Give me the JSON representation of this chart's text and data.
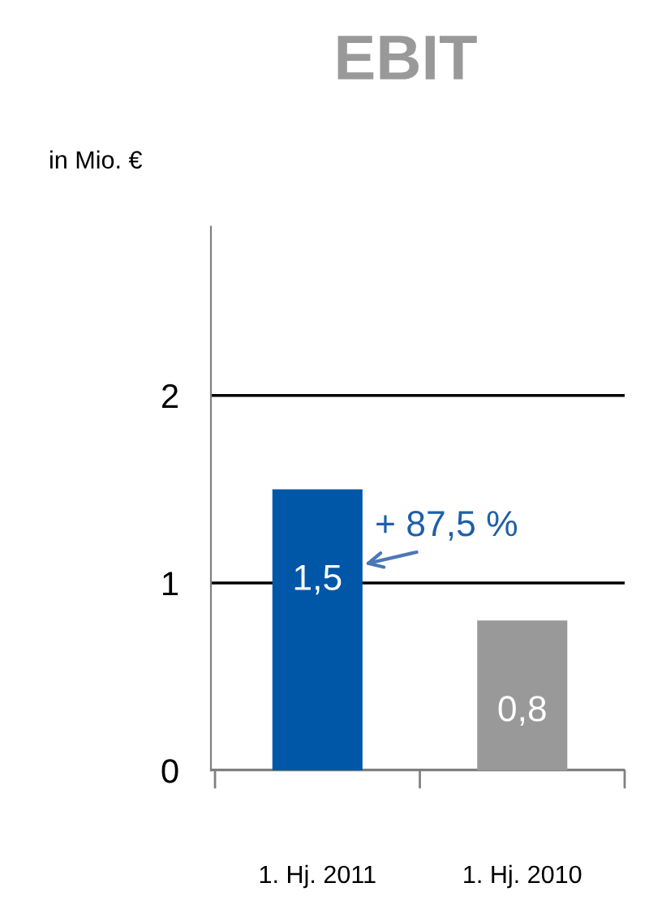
{
  "chart_data": {
    "type": "bar",
    "title": "EBIT",
    "ylabel": "in Mio. €",
    "categories": [
      "1. Hj. 2011",
      "1. Hj. 2010"
    ],
    "values": [
      1.5,
      0.8
    ],
    "colors": [
      "#0057a8",
      "#999999"
    ],
    "value_labels": [
      "1,5",
      "0,8"
    ],
    "ylim": [
      0,
      2.9
    ],
    "yticks": [
      0,
      1,
      2
    ],
    "grid": "y",
    "annotations": [
      "+ 87,5 %"
    ]
  }
}
